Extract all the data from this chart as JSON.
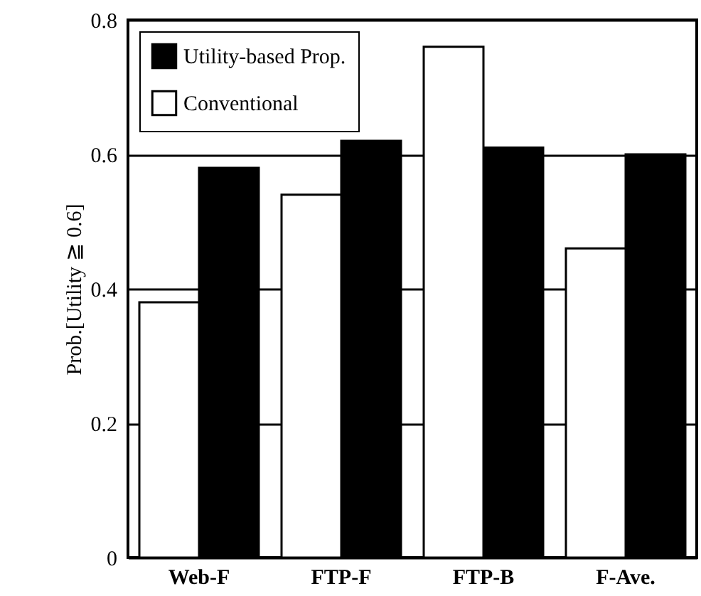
{
  "chart_data": {
    "type": "bar",
    "ylabel": "Prob.[Utility ≧ 0.6]",
    "categories": [
      "Web-F",
      "FTP-F",
      "FTP-B",
      "F-Ave."
    ],
    "series": [
      {
        "name": "Utility-based Prop.",
        "color": "#000000",
        "values": [
          0.58,
          0.62,
          0.61,
          0.6
        ]
      },
      {
        "name": "Conventional",
        "color": "#ffffff",
        "values": [
          0.38,
          0.54,
          0.76,
          0.46
        ]
      }
    ],
    "ylim": [
      0,
      0.8
    ],
    "yticks": [
      0,
      0.2,
      0.4,
      0.6,
      0.8
    ],
    "grid": "y",
    "legend": "top left"
  }
}
